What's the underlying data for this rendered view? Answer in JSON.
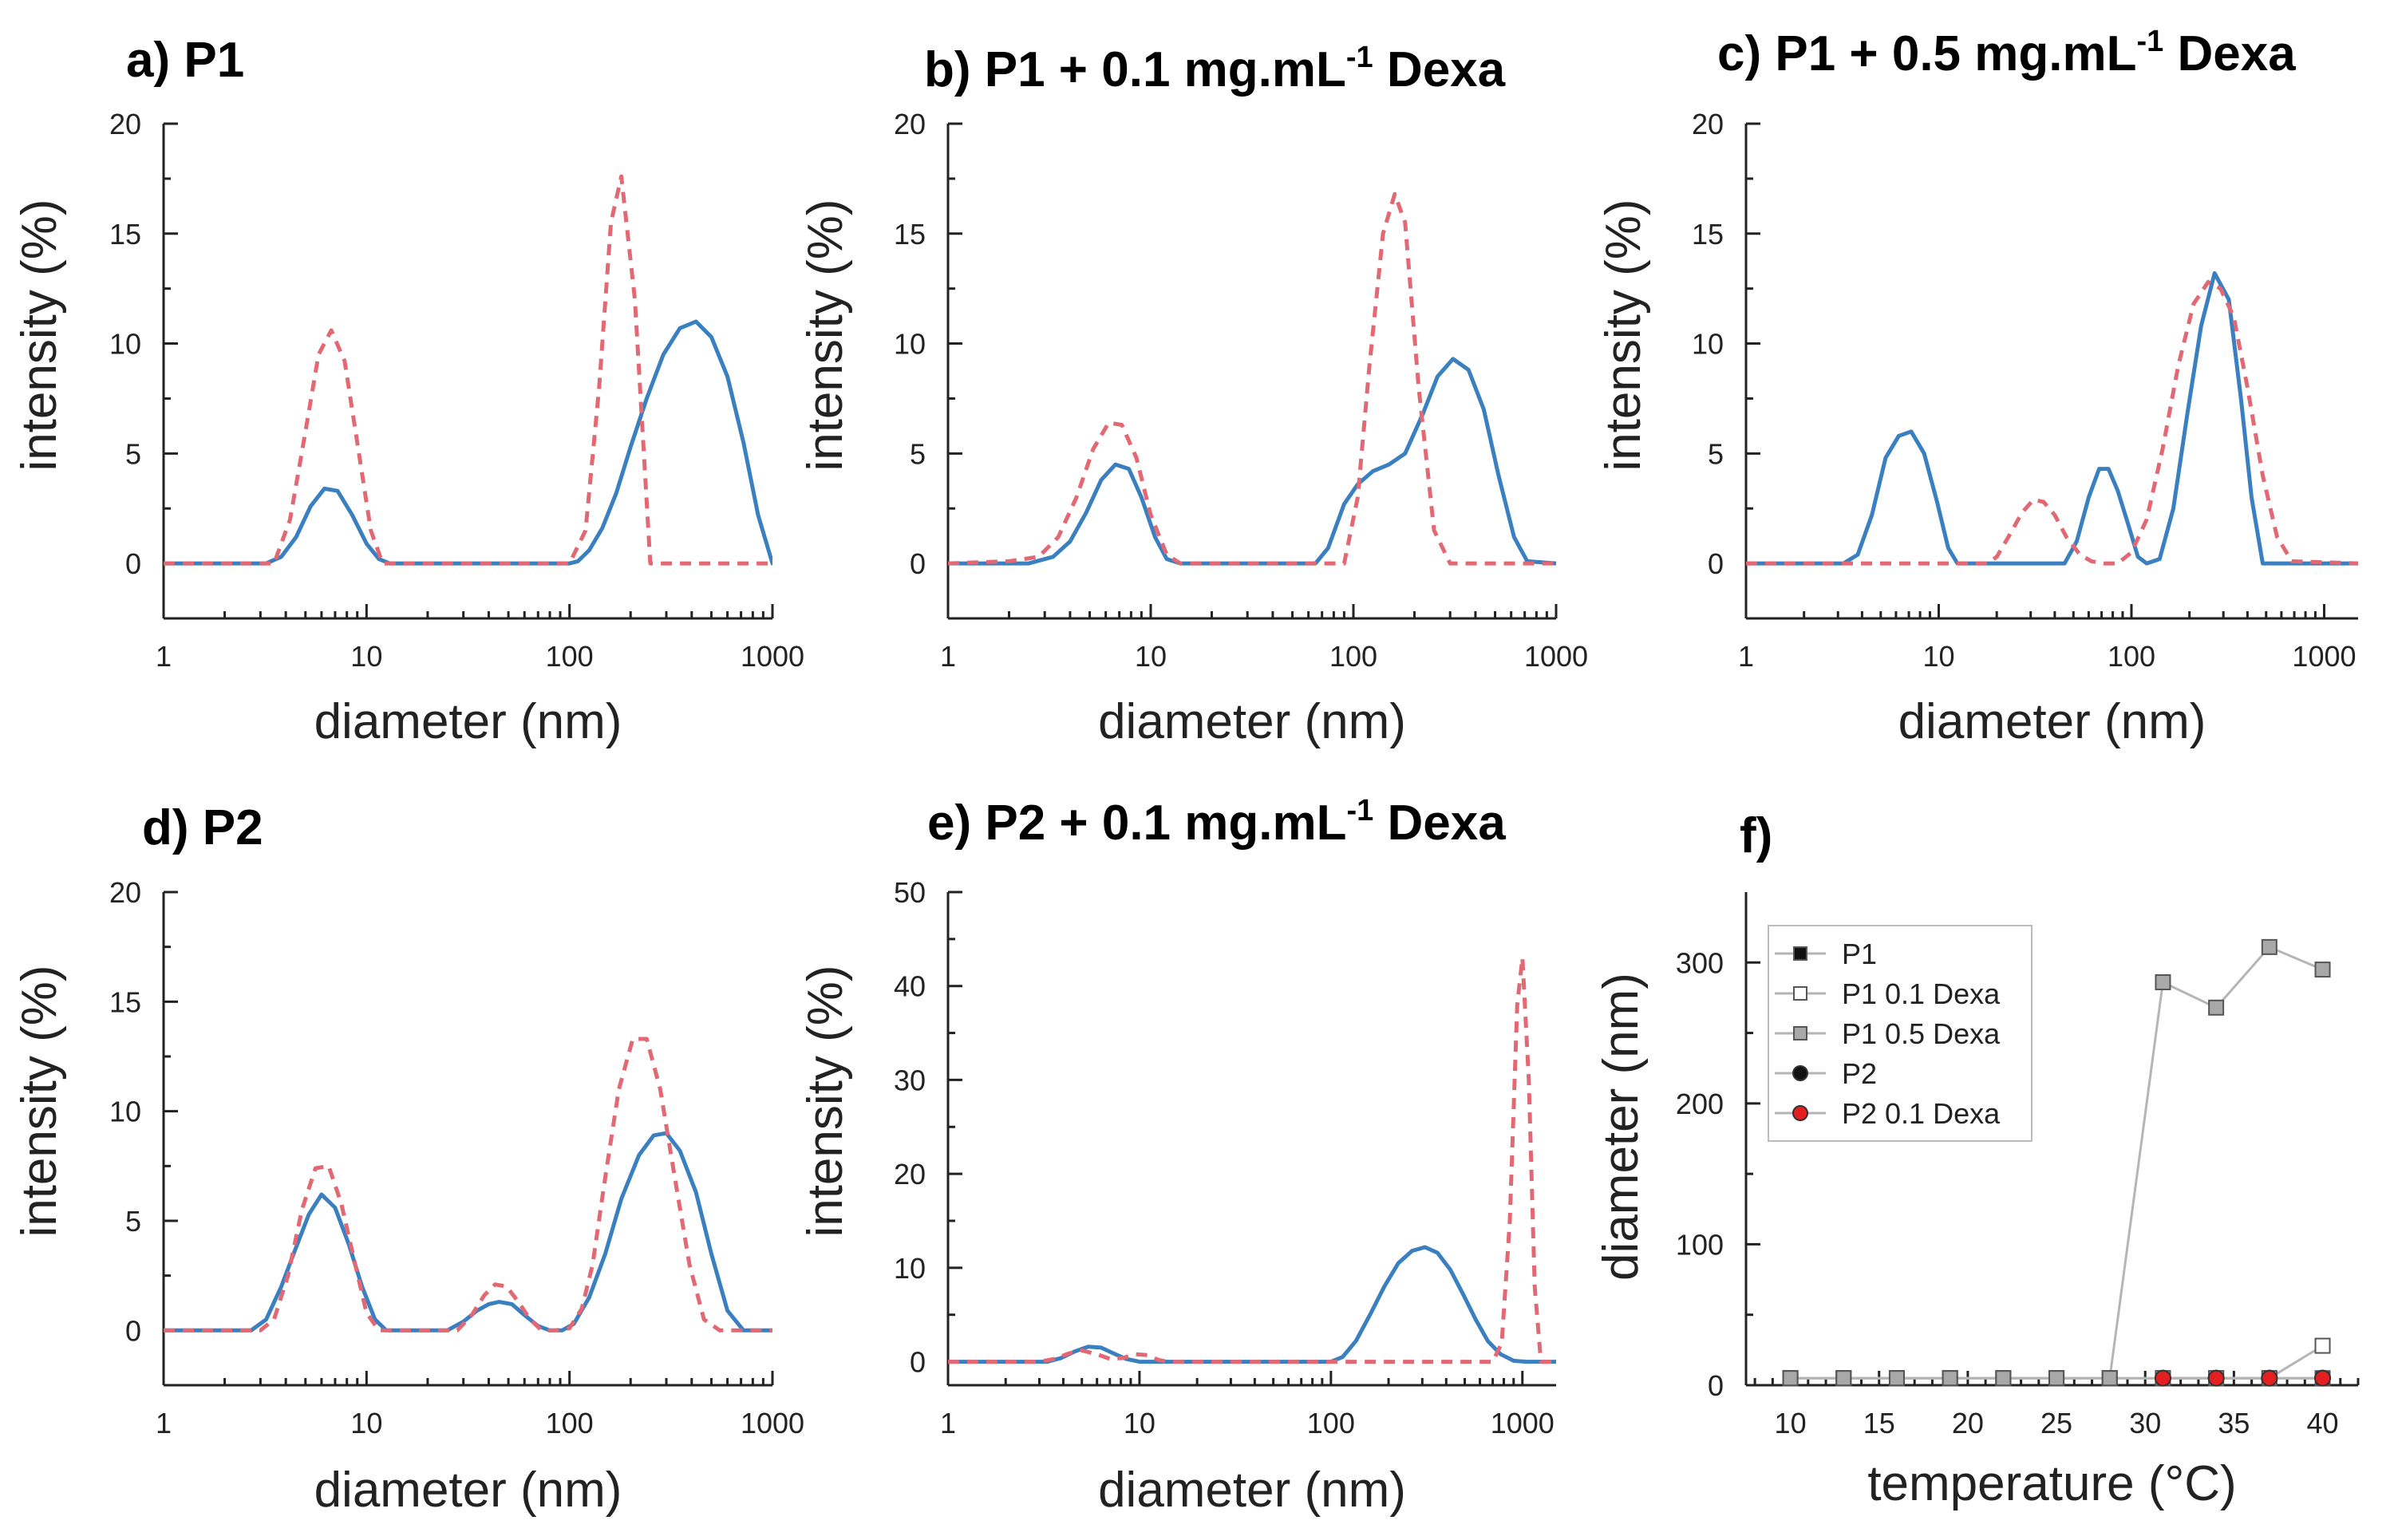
{
  "colors": {
    "blue": "#3a80c1",
    "red_dash": "#e26874",
    "gray_line": "#b5b5b5",
    "marker_gray": "#a8a8a8",
    "marker_red": "#e31f1f"
  },
  "chart_data": [
    {
      "id": "a",
      "type": "line",
      "title": "a) P1",
      "xlabel": "diameter (nm)",
      "ylabel": "intensity (%)",
      "xscale": "log",
      "xlim": [
        1,
        1000
      ],
      "ylim": [
        -2.5,
        20
      ],
      "xticks": [
        "1",
        "10",
        "100",
        "1000"
      ],
      "yticks": [
        "0",
        "5",
        "10",
        "15",
        "20"
      ],
      "series": [
        {
          "style": "solid",
          "color": "blue",
          "x": [
            1,
            3.2,
            3.8,
            4.5,
            5.3,
            6.2,
            7.2,
            8.5,
            10,
            11.5,
            13,
            100,
            110,
            125,
            145,
            170,
            200,
            240,
            290,
            350,
            420,
            500,
            600,
            720,
            850,
            1000
          ],
          "y": [
            0,
            0,
            0.3,
            1.2,
            2.6,
            3.4,
            3.3,
            2.2,
            0.9,
            0.2,
            0,
            0,
            0.1,
            0.6,
            1.6,
            3.2,
            5.3,
            7.5,
            9.5,
            10.7,
            11.0,
            10.3,
            8.5,
            5.5,
            2.2,
            0
          ]
        },
        {
          "style": "dash",
          "color": "red_dash",
          "x": [
            1,
            3.5,
            4.2,
            5.0,
            5.8,
            6.7,
            7.8,
            9.0,
            10.5,
            12,
            100,
            120,
            140,
            160,
            180,
            210,
            250,
            1000
          ],
          "y": [
            0,
            0,
            2.0,
            6.0,
            9.5,
            10.6,
            9.2,
            5.5,
            1.5,
            0,
            0,
            1.5,
            8.0,
            15.5,
            17.6,
            12.0,
            0,
            0
          ]
        }
      ]
    },
    {
      "id": "b",
      "type": "line",
      "title": "b) P1 + 0.1 mg.mL",
      "title_sup": "-1",
      "title_suffix": " Dexa",
      "xlabel": "diameter (nm)",
      "ylabel": "intensity (%)",
      "xscale": "log",
      "xlim": [
        1,
        1000
      ],
      "ylim": [
        -2.5,
        20
      ],
      "xticks": [
        "1",
        "10",
        "100",
        "1000"
      ],
      "yticks": [
        "0",
        "5",
        "10",
        "15",
        "20"
      ],
      "series": [
        {
          "style": "solid",
          "color": "blue",
          "x": [
            1,
            2.5,
            3.3,
            4.0,
            4.8,
            5.7,
            6.7,
            7.8,
            9.0,
            10.5,
            12,
            14,
            65,
            75,
            90,
            105,
            125,
            150,
            180,
            220,
            260,
            310,
            370,
            440,
            520,
            620,
            720,
            1000
          ],
          "y": [
            0,
            0,
            0.3,
            1.0,
            2.3,
            3.8,
            4.5,
            4.3,
            3.0,
            1.2,
            0.2,
            0,
            0,
            0.7,
            2.7,
            3.6,
            4.2,
            4.5,
            5.0,
            6.8,
            8.5,
            9.3,
            8.8,
            7.0,
            4.0,
            1.2,
            0.1,
            0
          ]
        },
        {
          "style": "dash",
          "color": "red_dash",
          "x": [
            1,
            2.0,
            2.8,
            3.5,
            4.3,
            5.2,
            6.2,
            7.2,
            8.5,
            10,
            12,
            14,
            90,
            105,
            120,
            140,
            160,
            180,
            210,
            250,
            300,
            1000
          ],
          "y": [
            0,
            0.1,
            0.3,
            1.2,
            3.0,
            5.2,
            6.4,
            6.3,
            4.8,
            2.2,
            0.4,
            0,
            0,
            3.0,
            9.0,
            15.0,
            16.8,
            15.5,
            8.0,
            1.5,
            0,
            0
          ]
        }
      ]
    },
    {
      "id": "c",
      "type": "line",
      "title": "c) P1 + 0.5 mg.mL",
      "title_sup": "-1",
      "title_suffix": " Dexa",
      "xlabel": "diameter (nm)",
      "ylabel": "intensity (%)",
      "xscale": "log",
      "xlim": [
        1,
        1500
      ],
      "ylim": [
        -2.5,
        20
      ],
      "xticks": [
        "1",
        "10",
        "100",
        "1000"
      ],
      "yticks": [
        "0",
        "5",
        "10",
        "15",
        "20"
      ],
      "series": [
        {
          "style": "solid",
          "color": "blue",
          "x": [
            1,
            3.2,
            3.8,
            4.5,
            5.3,
            6.2,
            7.2,
            8.4,
            9.8,
            11.2,
            12.5,
            45,
            52,
            60,
            68,
            76,
            85,
            96,
            108,
            120,
            140,
            165,
            195,
            230,
            270,
            320,
            370,
            420,
            480,
            1500
          ],
          "y": [
            0,
            0,
            0.4,
            2.2,
            4.8,
            5.8,
            6.0,
            5.0,
            2.8,
            0.7,
            0,
            0,
            1.0,
            3.0,
            4.3,
            4.3,
            3.3,
            1.8,
            0.3,
            0,
            0.2,
            2.5,
            6.8,
            10.8,
            13.2,
            12.0,
            7.5,
            3.0,
            0,
            0
          ]
        },
        {
          "style": "dash",
          "color": "red_dash",
          "x": [
            1,
            18,
            20,
            23,
            27,
            31,
            35,
            40,
            46,
            54,
            62,
            72,
            85,
            100,
            120,
            145,
            175,
            210,
            250,
            290,
            340,
            400,
            480,
            570,
            680,
            1500
          ],
          "y": [
            0,
            0,
            0.3,
            1.2,
            2.3,
            2.9,
            2.8,
            2.2,
            1.2,
            0.4,
            0.1,
            0,
            0,
            0.5,
            2.0,
            5.2,
            9.0,
            11.8,
            12.8,
            12.5,
            11.2,
            8.0,
            4.0,
            1.2,
            0.1,
            0
          ]
        }
      ]
    },
    {
      "id": "d",
      "type": "line",
      "title": "d) P2",
      "xlabel": "diameter (nm)",
      "ylabel": "intensity (%)",
      "xscale": "log",
      "xlim": [
        1,
        1000
      ],
      "ylim": [
        -2.5,
        20
      ],
      "xticks": [
        "1",
        "10",
        "100",
        "1000"
      ],
      "yticks": [
        "0",
        "5",
        "10",
        "15",
        "20"
      ],
      "series": [
        {
          "style": "solid",
          "color": "blue",
          "x": [
            1,
            2.7,
            3.2,
            3.8,
            4.5,
            5.2,
            6.0,
            7.0,
            8.2,
            9.5,
            11,
            12.5,
            25,
            30,
            35,
            40,
            45,
            52,
            60,
            70,
            80,
            92,
            105,
            125,
            150,
            180,
            220,
            260,
            300,
            350,
            420,
            500,
            600,
            720,
            850,
            1000
          ],
          "y": [
            0,
            0,
            0.5,
            2.0,
            3.8,
            5.3,
            6.2,
            5.6,
            3.9,
            2.0,
            0.5,
            0,
            0,
            0.4,
            0.9,
            1.2,
            1.3,
            1.2,
            0.7,
            0.2,
            0,
            0,
            0.3,
            1.5,
            3.5,
            6.0,
            8.0,
            8.9,
            9.0,
            8.2,
            6.3,
            3.5,
            0.9,
            0,
            0,
            0
          ]
        },
        {
          "style": "dash",
          "color": "red_dash",
          "x": [
            1,
            3.0,
            3.5,
            4.1,
            4.8,
            5.6,
            6.5,
            7.5,
            8.8,
            10,
            11.5,
            28,
            33,
            38,
            43,
            49,
            56,
            64,
            73,
            85,
            100,
            115,
            130,
            150,
            175,
            205,
            240,
            280,
            330,
            390,
            460,
            550,
            650,
            1000
          ],
          "y": [
            0,
            0,
            0.5,
            2.5,
            5.5,
            7.4,
            7.5,
            5.8,
            3.0,
            0.8,
            0,
            0,
            0.7,
            1.6,
            2.1,
            2.0,
            1.3,
            0.5,
            0,
            0,
            0.1,
            1.0,
            3.0,
            7.0,
            11.0,
            13.3,
            13.3,
            11.0,
            7.0,
            3.0,
            0.5,
            0,
            0,
            0
          ]
        }
      ]
    },
    {
      "id": "e",
      "type": "line",
      "title": "e) P2 + 0.1 mg.mL",
      "title_sup": "-1",
      "title_suffix": " Dexa",
      "xlabel": "diameter (nm)",
      "ylabel": "intensity (%)",
      "xscale": "log",
      "xlim": [
        1,
        1500
      ],
      "ylim": [
        -2.5,
        50
      ],
      "xticks": [
        "1",
        "10",
        "100",
        "1000"
      ],
      "yticks": [
        "0",
        "10",
        "20",
        "30",
        "40",
        "50"
      ],
      "series": [
        {
          "style": "solid",
          "color": "blue",
          "x": [
            1,
            3.3,
            3.9,
            4.6,
            5.4,
            6.3,
            7.3,
            8.5,
            10,
            100,
            115,
            135,
            160,
            190,
            225,
            265,
            310,
            360,
            420,
            490,
            570,
            660,
            770,
            900,
            1050,
            1500
          ],
          "y": [
            0,
            0,
            0.4,
            1.1,
            1.6,
            1.5,
            0.9,
            0.3,
            0,
            0,
            0.5,
            2.2,
            5.0,
            8.0,
            10.5,
            11.8,
            12.2,
            11.6,
            9.8,
            7.2,
            4.5,
            2.2,
            0.8,
            0.1,
            0,
            0
          ]
        },
        {
          "style": "dash",
          "color": "red_dash",
          "x": [
            1,
            3.0,
            3.6,
            4.3,
            5.0,
            6.0,
            7.0,
            8.2,
            9.5,
            11,
            12.5,
            14,
            700,
            780,
            860,
            940,
            1000,
            1080,
            1160,
            1250,
            1500
          ],
          "y": [
            0,
            0,
            0.3,
            0.9,
            1.2,
            0.8,
            0.3,
            0.4,
            0.8,
            0.7,
            0.2,
            0,
            0,
            2.0,
            15.0,
            38.0,
            43.0,
            30.0,
            8.0,
            0,
            0
          ]
        }
      ]
    },
    {
      "id": "f",
      "type": "scatter",
      "title": "f)",
      "xlabel": "temperature (°C)",
      "ylabel": "diameter (nm)",
      "xlim": [
        7.5,
        42
      ],
      "ylim": [
        0,
        350
      ],
      "xticks": [
        "10",
        "15",
        "20",
        "25",
        "30",
        "35",
        "40"
      ],
      "yticks": [
        "0",
        "100",
        "200",
        "300"
      ],
      "legend_position": "top-left",
      "series": [
        {
          "name": "P1",
          "marker": "square",
          "fill": "#111111",
          "x": [
            10,
            13,
            16,
            19,
            22,
            25,
            28,
            31,
            34,
            37,
            40
          ],
          "y": [
            5,
            5,
            5,
            5,
            5,
            5,
            5,
            5,
            5,
            5,
            5
          ]
        },
        {
          "name": "P1 0.1 Dexa",
          "marker": "square",
          "fill": "#ffffff",
          "x": [
            10,
            13,
            16,
            19,
            22,
            25,
            28,
            31,
            34,
            37,
            40
          ],
          "y": [
            5,
            5,
            5,
            5,
            5,
            5,
            5,
            5,
            5,
            5,
            28
          ]
        },
        {
          "name": "P1 0.5 Dexa",
          "marker": "square",
          "fill": "#a8a8a8",
          "x": [
            10,
            13,
            16,
            19,
            22,
            25,
            28,
            31,
            34,
            37,
            40
          ],
          "y": [
            5,
            5,
            5,
            5,
            5,
            5,
            5,
            286,
            268,
            311,
            295
          ]
        },
        {
          "name": "P2",
          "marker": "circle",
          "fill": "#111111",
          "x": [
            31,
            34,
            37,
            40
          ],
          "y": [
            5,
            5,
            5,
            5
          ]
        },
        {
          "name": "P2 0.1 Dexa",
          "marker": "circle",
          "fill": "#e31f1f",
          "x": [
            31,
            34,
            37,
            40
          ],
          "y": [
            5,
            5,
            5,
            5
          ]
        }
      ]
    }
  ]
}
